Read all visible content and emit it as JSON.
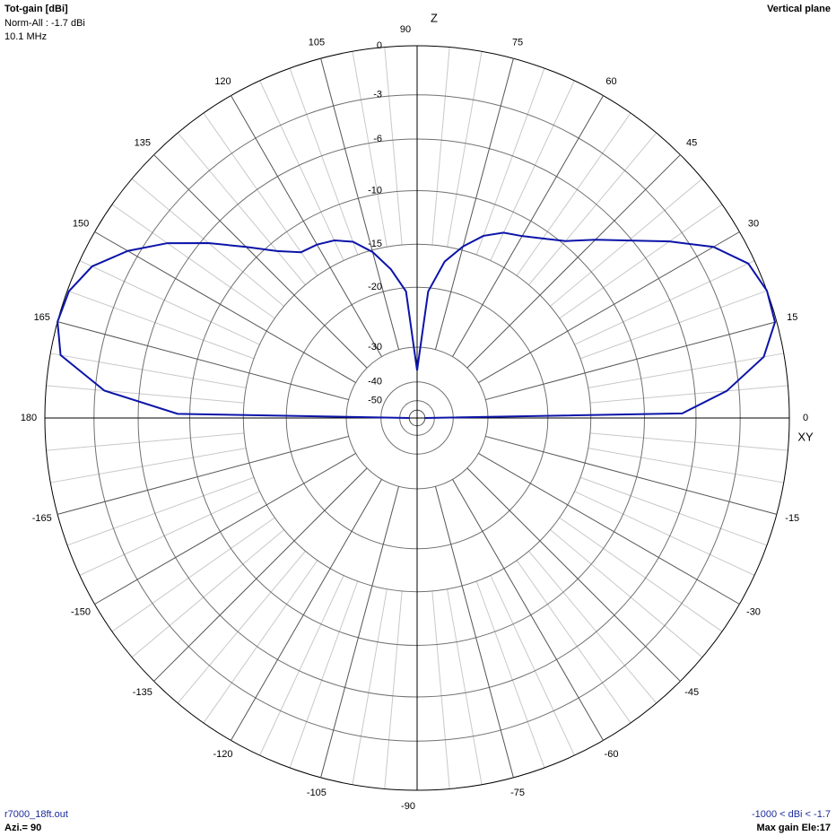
{
  "chart_data": {
    "type": "polar",
    "title": "Tot-gain [dBi]",
    "subtitle_lines": [
      "Norm-All : -1.7 dBi",
      "10.1 MHz"
    ],
    "plane_label": "Vertical plane",
    "z_axis_label": "Z",
    "xy_axis_label": "XY",
    "footer_left": [
      "r7000_18ft.out",
      "Azi.= 90"
    ],
    "footer_right": [
      "-1000 < dBi < -1.7",
      "Max gain Ele:17"
    ],
    "x": [
      0,
      1,
      5,
      10,
      15,
      20,
      25,
      30,
      35,
      40,
      45,
      50,
      55,
      60,
      65,
      70,
      75,
      80,
      85,
      90,
      95,
      100,
      105,
      110,
      115,
      120,
      125,
      130,
      135,
      140,
      145,
      150,
      155,
      160,
      165,
      170,
      175,
      179,
      180
    ],
    "values": [
      -60,
      -7,
      -3.8,
      -1.2,
      -0.1,
      0,
      -0.4,
      -1.8,
      -4,
      -6.2,
      -8,
      -9.7,
      -10.7,
      -11.5,
      -12,
      -13,
      -14.6,
      -16.6,
      -20.5,
      -36,
      -20.5,
      -17.5,
      -15.2,
      -13.6,
      -12.8,
      -12.4,
      -12.2,
      -10.8,
      -8.8,
      -6.5,
      -4.2,
      -2.3,
      -0.8,
      -0.1,
      0,
      -0.6,
      -3.6,
      -9,
      -60
    ],
    "color": "#0c14a8",
    "xticks": [
      0,
      15,
      30,
      45,
      60,
      75,
      90,
      105,
      120,
      135,
      150,
      165,
      180,
      -165,
      -150,
      -135,
      -120,
      -105,
      -90,
      -75,
      -60,
      -45,
      -30,
      -15
    ],
    "ylim": [
      -60,
      0
    ],
    "yticks": [
      0,
      -3,
      -6,
      -10,
      -15,
      -20,
      -30,
      -40,
      -50
    ]
  }
}
